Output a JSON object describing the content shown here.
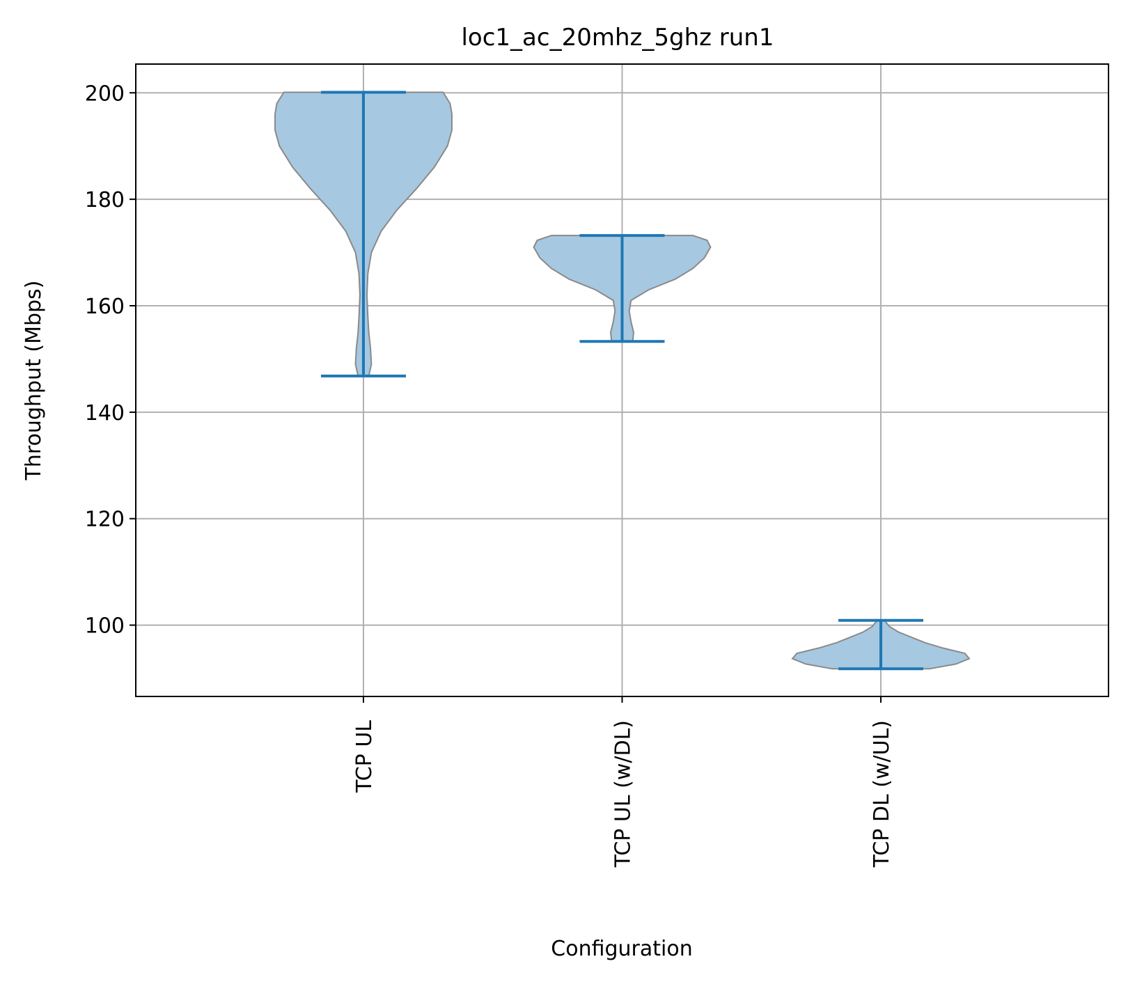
{
  "chart_data": {
    "type": "violin",
    "title": "loc1_ac_20mhz_5ghz run1",
    "xlabel": "Configuration",
    "ylabel": "Throughput (Mbps)",
    "categories": [
      "TCP  UL",
      "TCP UL (w/DL)",
      "TCP DL (w/UL)"
    ],
    "ylim": [
      86.6,
      205.4
    ],
    "yticks": [
      100,
      120,
      140,
      160,
      180,
      200
    ],
    "grid": true,
    "colors": {
      "body_fill": "#a6c8e1",
      "body_edge": "#8a8a8a",
      "whisker": "#1f77b4",
      "grid": "#b0b0b0"
    },
    "series": [
      {
        "min": 146.8,
        "max": 200.1,
        "profile": [
          [
            146.8,
            0.06
          ],
          [
            149,
            0.09
          ],
          [
            152,
            0.08
          ],
          [
            155,
            0.06
          ],
          [
            158,
            0.05
          ],
          [
            162,
            0.04
          ],
          [
            166,
            0.05
          ],
          [
            170,
            0.09
          ],
          [
            174,
            0.2
          ],
          [
            178,
            0.38
          ],
          [
            182,
            0.6
          ],
          [
            186,
            0.8
          ],
          [
            190,
            0.95
          ],
          [
            193,
            1.0
          ],
          [
            196,
            1.0
          ],
          [
            198,
            0.98
          ],
          [
            200.1,
            0.9
          ]
        ]
      },
      {
        "min": 153.3,
        "max": 173.2,
        "profile": [
          [
            153.3,
            0.12
          ],
          [
            155,
            0.13
          ],
          [
            157,
            0.1
          ],
          [
            159,
            0.08
          ],
          [
            161,
            0.1
          ],
          [
            163,
            0.3
          ],
          [
            165,
            0.6
          ],
          [
            167,
            0.8
          ],
          [
            169,
            0.93
          ],
          [
            171,
            1.0
          ],
          [
            172.3,
            0.96
          ],
          [
            173.2,
            0.8
          ]
        ]
      },
      {
        "min": 91.8,
        "max": 100.9,
        "profile": [
          [
            91.8,
            0.55
          ],
          [
            92.7,
            0.85
          ],
          [
            93.7,
            1.0
          ],
          [
            94.7,
            0.95
          ],
          [
            95.7,
            0.7
          ],
          [
            96.7,
            0.5
          ],
          [
            97.7,
            0.35
          ],
          [
            98.7,
            0.2
          ],
          [
            99.7,
            0.1
          ],
          [
            100.9,
            0.04
          ]
        ]
      }
    ]
  }
}
